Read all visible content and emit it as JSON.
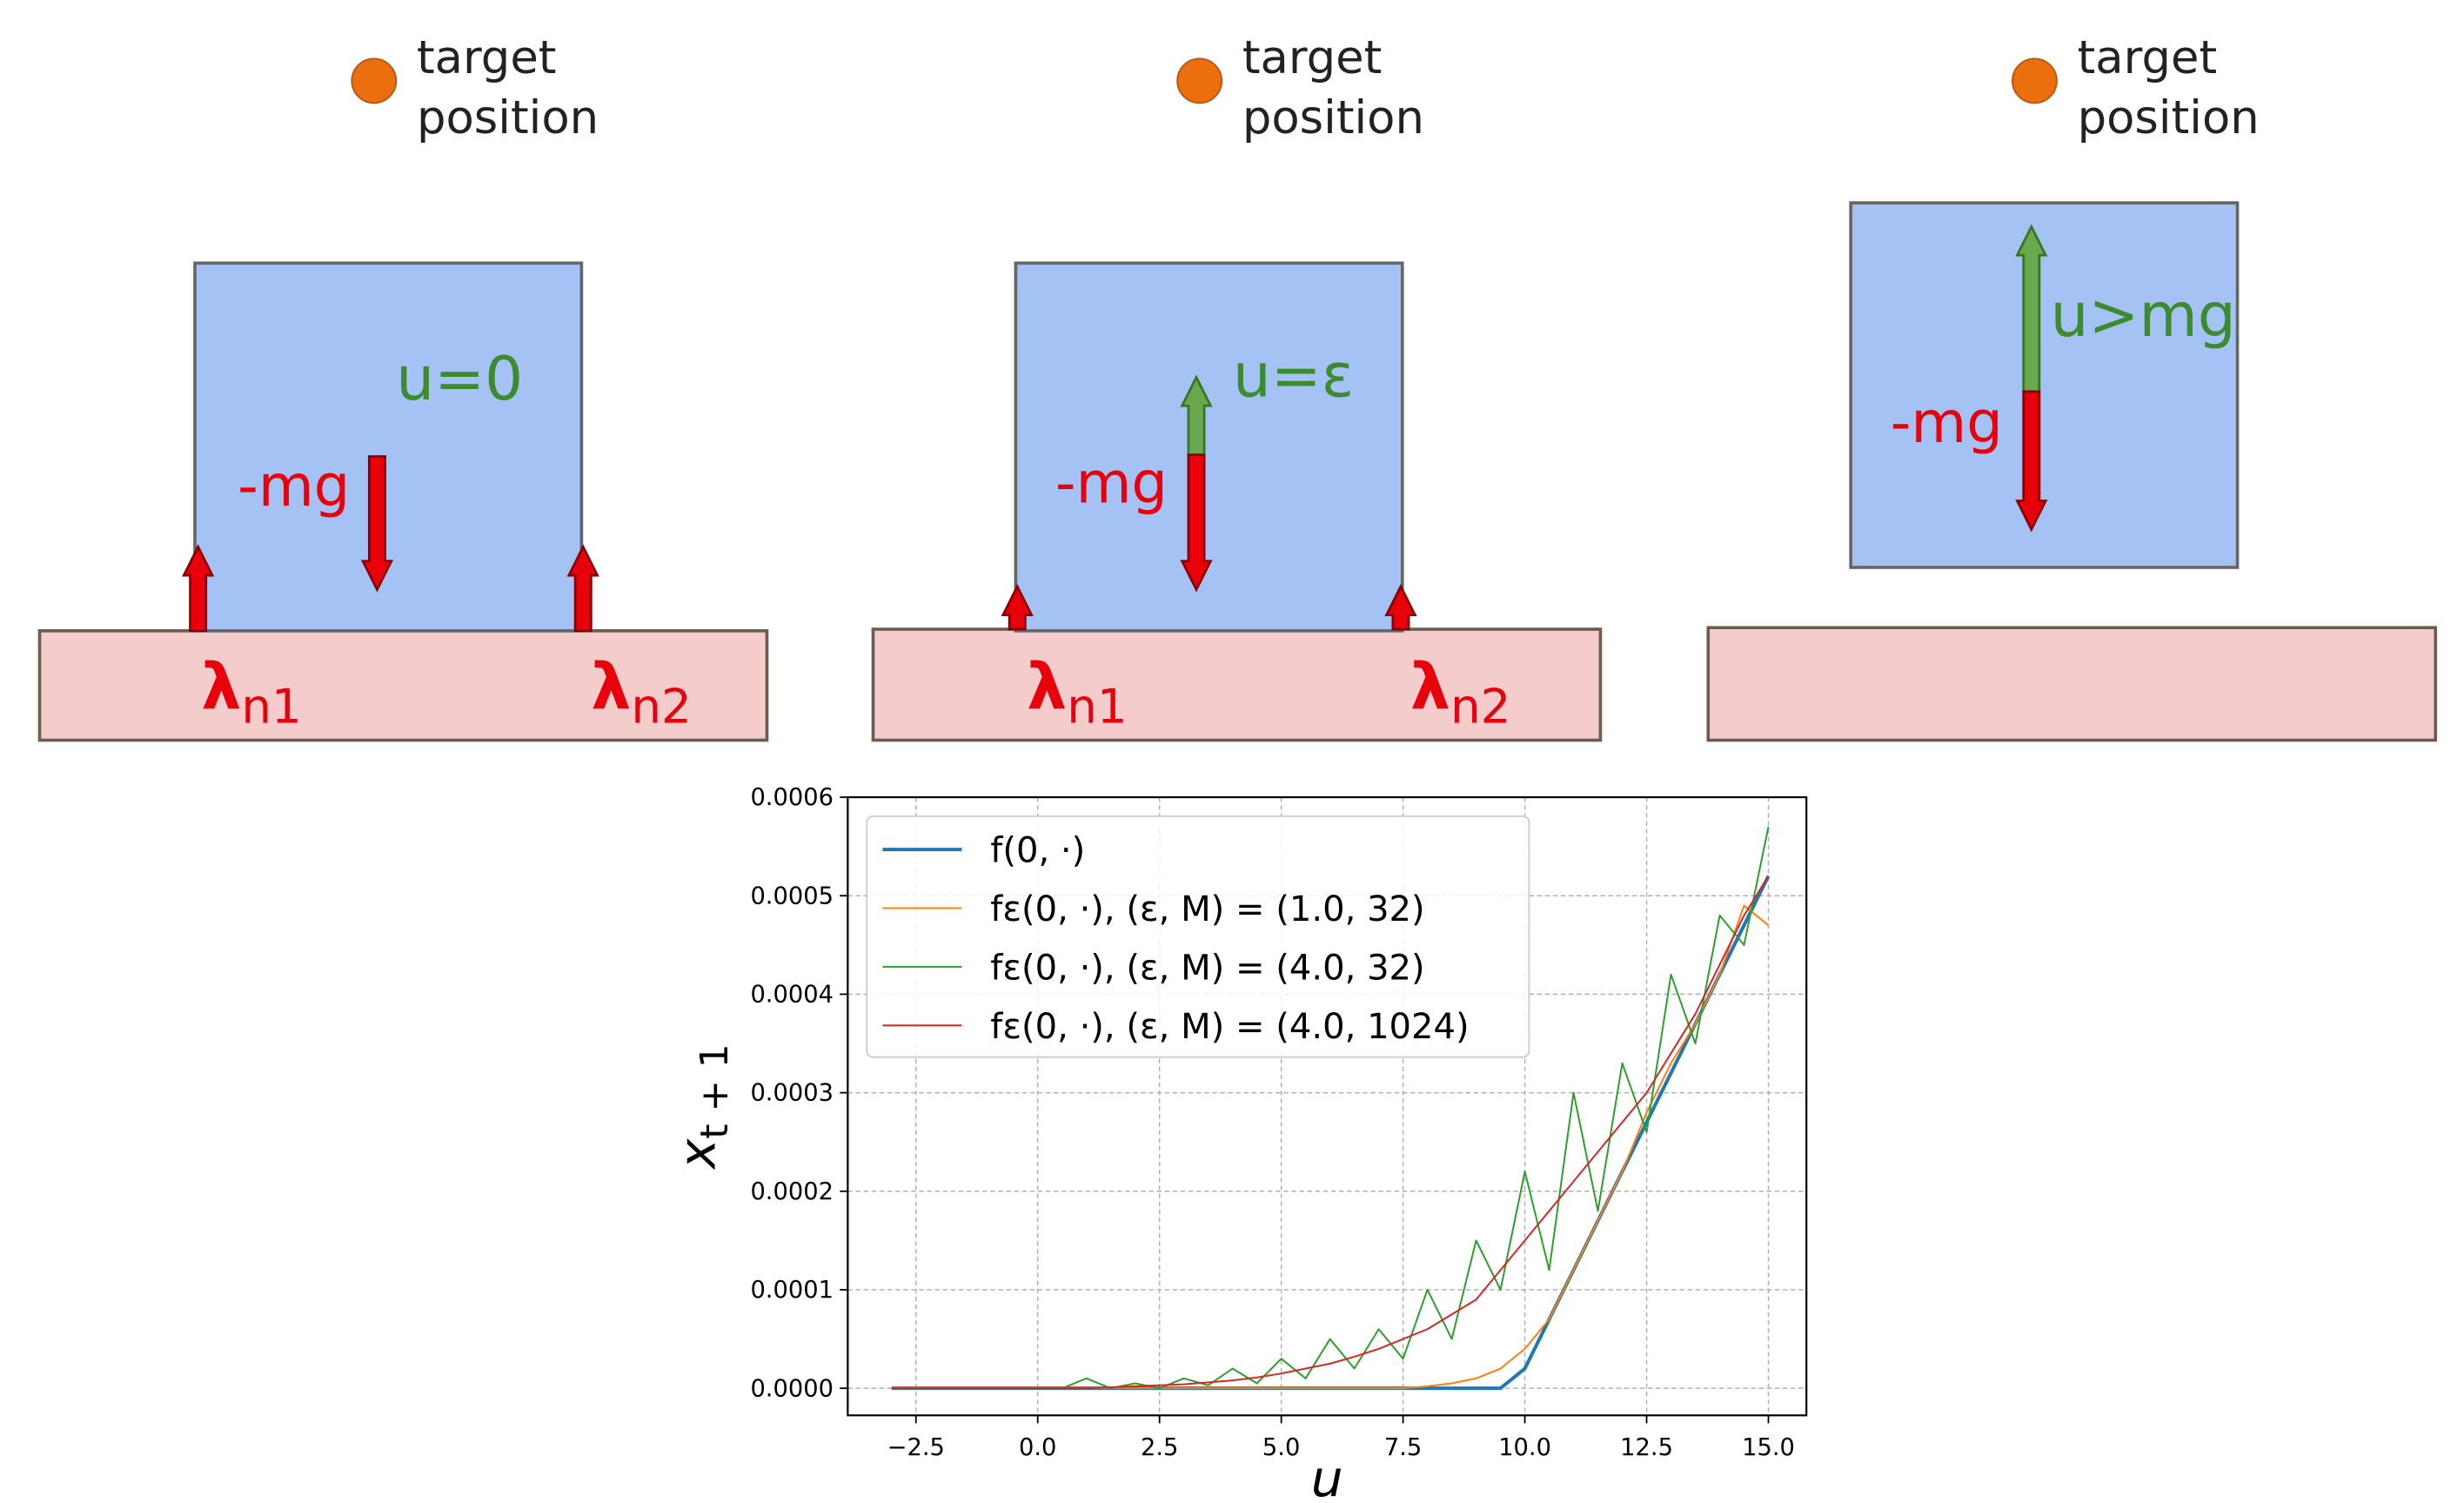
{
  "panels": [
    {
      "target": [
        "target",
        "position"
      ],
      "force_label": "u=0",
      "gravity_label": "-mg",
      "contacts": [
        {
          "symbol": "λ",
          "subscript": "n1"
        },
        {
          "symbol": "λ",
          "subscript": "n2"
        }
      ]
    },
    {
      "target": [
        "target",
        "position"
      ],
      "force_label": "u=ε",
      "gravity_label": "-mg",
      "contacts": [
        {
          "symbol": "λ",
          "subscript": "n1"
        },
        {
          "symbol": "λ",
          "subscript": "n2"
        }
      ]
    },
    {
      "target": [
        "target",
        "position"
      ],
      "force_label": "u>mg",
      "gravity_label": "-mg",
      "contacts": []
    }
  ],
  "chart_data": {
    "type": "line",
    "xlabel": "u",
    "ylabel": "x",
    "ylabel_subscript": "t + 1",
    "x": [
      -3,
      -2.5,
      -2,
      -1.5,
      -1,
      -0.5,
      0,
      0.5,
      1,
      1.5,
      2,
      2.5,
      3,
      3.5,
      4,
      4.5,
      5,
      5.5,
      6,
      6.5,
      7,
      7.5,
      8,
      8.5,
      9,
      9.5,
      10,
      10.5,
      11,
      11.5,
      12,
      12.5,
      13,
      13.5,
      14,
      14.5,
      15
    ],
    "series": [
      {
        "name": "f(0, ·)",
        "color": "#1f77b4",
        "values": [
          0,
          0,
          0,
          0,
          0,
          0,
          0,
          0,
          0,
          0,
          0,
          0,
          0,
          0,
          0,
          0,
          0,
          0,
          0,
          0,
          0,
          0,
          0,
          0,
          0,
          0,
          2e-05,
          7e-05,
          0.00012,
          0.00017,
          0.00022,
          0.00027,
          0.00032,
          0.00037,
          0.00042,
          0.00047,
          0.00052
        ]
      },
      {
        "name": "fε(0, ·), (ε, M) = (1.0, 32)",
        "color": "#ff7f0e",
        "values": [
          0,
          0,
          0,
          0,
          0,
          0,
          0,
          0,
          0,
          0,
          0,
          0,
          0,
          0,
          0,
          0,
          0,
          0,
          0,
          0,
          0,
          0,
          2e-06,
          5e-06,
          1e-05,
          2e-05,
          4e-05,
          7e-05,
          0.00012,
          0.00017,
          0.00022,
          0.00028,
          0.00033,
          0.00037,
          0.00042,
          0.00049,
          0.00047
        ]
      },
      {
        "name": "fε(0, ·), (ε, M) = (4.0, 32)",
        "color": "#2ca02c",
        "values": [
          0,
          0,
          0,
          0,
          0,
          0,
          0,
          0,
          1e-05,
          0,
          5e-06,
          0,
          1e-05,
          3e-06,
          2e-05,
          5e-06,
          3e-05,
          1e-05,
          5e-05,
          2e-05,
          6e-05,
          3e-05,
          0.0001,
          5e-05,
          0.00015,
          0.0001,
          0.00022,
          0.00012,
          0.0003,
          0.00018,
          0.00033,
          0.00026,
          0.00042,
          0.00035,
          0.00048,
          0.00045,
          0.00057
        ]
      },
      {
        "name": "fε(0, ·), (ε, M) = (4.0, 1024)",
        "color": "#d62728",
        "values": [
          0,
          0,
          0,
          0,
          0,
          0,
          0,
          0,
          0,
          1e-06,
          2e-06,
          3e-06,
          4e-06,
          6e-06,
          8e-06,
          1.1e-05,
          1.5e-05,
          2e-05,
          2.5e-05,
          3.2e-05,
          4e-05,
          5e-05,
          6e-05,
          7.5e-05,
          9e-05,
          0.00012,
          0.00015,
          0.00018,
          0.00021,
          0.00024,
          0.00027,
          0.0003,
          0.00034,
          0.00038,
          0.00043,
          0.00048,
          0.00052
        ]
      }
    ],
    "xlim": [
      -3.9,
      15.78
    ],
    "xticks": [
      {
        "value": -2.5,
        "label": "−2.5"
      },
      {
        "value": 0,
        "label": "0.0"
      },
      2.5,
      {
        "value": 5,
        "label": "5.0"
      },
      7.5,
      {
        "value": 10,
        "label": "10.0"
      },
      12.5,
      {
        "value": 15,
        "label": "15.0"
      }
    ],
    "ylim": [
      -2.75e-05,
      0.0006
    ],
    "yticks": [
      {
        "value": 0,
        "label": "0.0000"
      },
      {
        "value": 0.0001,
        "label": "0.0001"
      },
      {
        "value": 0.0002,
        "label": "0.0002"
      },
      {
        "value": 0.0003,
        "label": "0.0003"
      },
      {
        "value": 0.0004,
        "label": "0.0004"
      },
      {
        "value": 0.0005,
        "label": "0.0005"
      },
      {
        "value": 0.0006,
        "label": "0.0006"
      }
    ],
    "grid": true,
    "legend": "upper left"
  }
}
